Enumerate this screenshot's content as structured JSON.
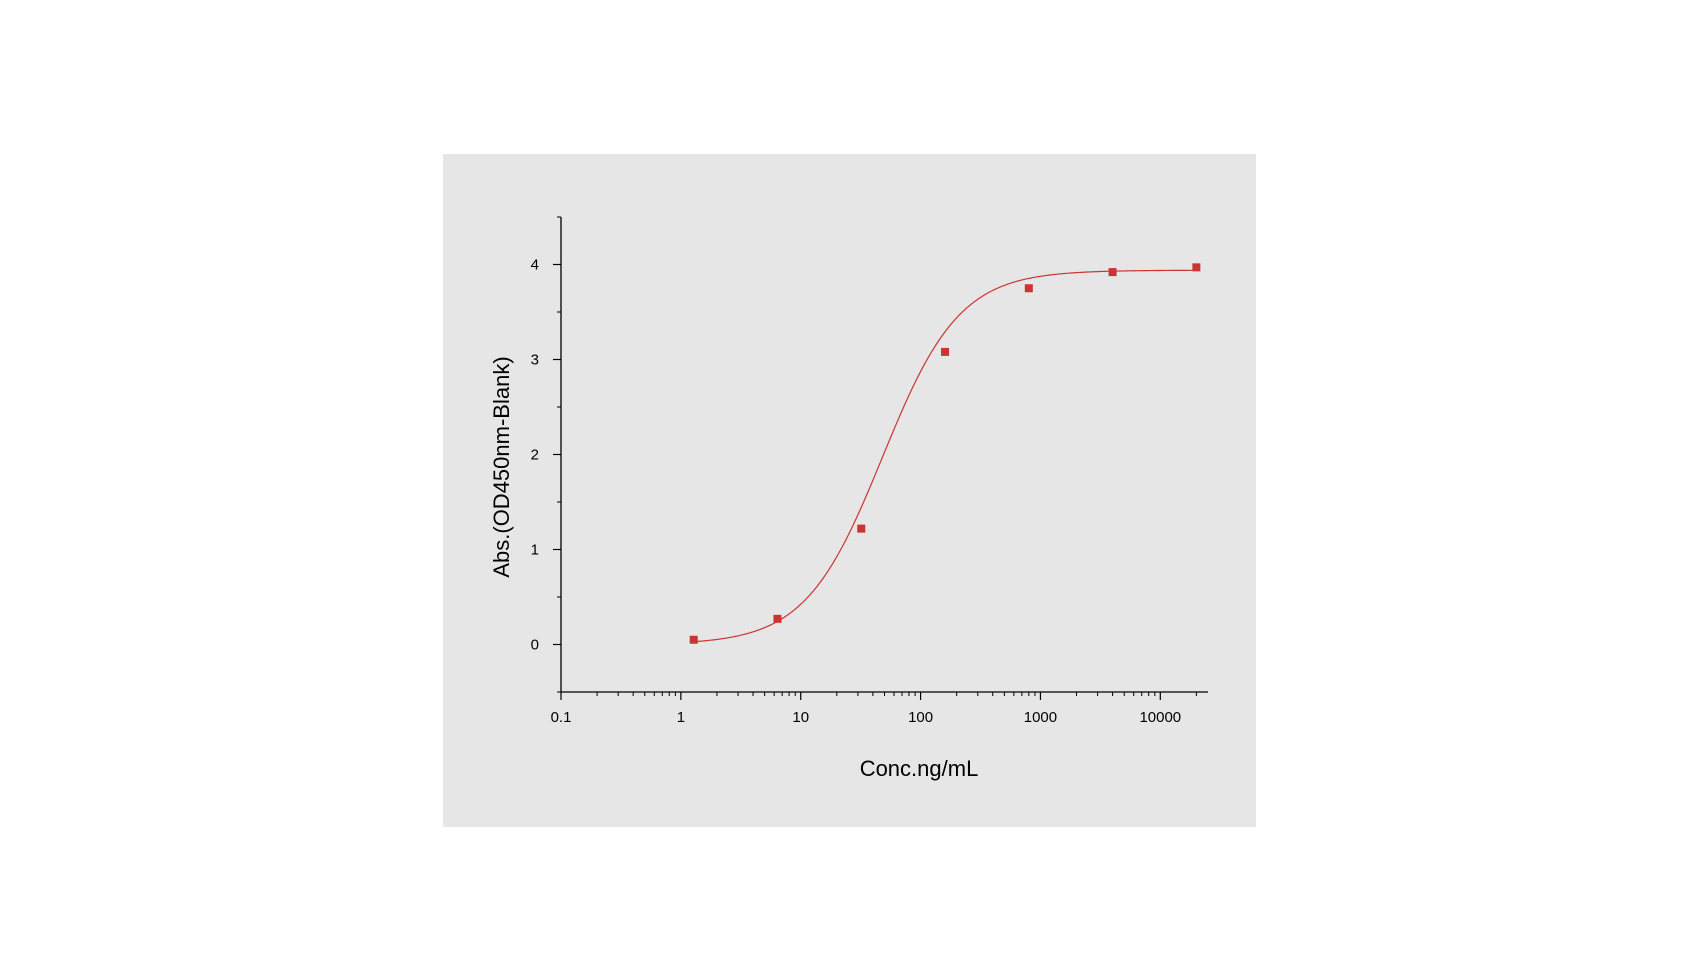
{
  "colors": {
    "page_background": "#ffffff",
    "plot_panel": "#e6e6e6",
    "axis": "#000000",
    "series": "#cc3333"
  },
  "chart_data": {
    "type": "scatter",
    "title": "",
    "xlabel": "Conc.ng/mL",
    "ylabel": "Abs.(OD450nm-Blank)",
    "x_scale": "log",
    "xlim": [
      0.1,
      25000
    ],
    "ylim": [
      -0.5,
      4.5
    ],
    "x_ticks": [
      0.1,
      1,
      10,
      100,
      1000,
      10000
    ],
    "x_tick_labels": [
      "0.1",
      "1",
      "10",
      "100",
      "1000",
      "10000"
    ],
    "y_ticks": [
      0,
      1,
      2,
      3,
      4
    ],
    "y_tick_labels": [
      "0",
      "1",
      "2",
      "3",
      "4"
    ],
    "grid": false,
    "legend": "none",
    "series": [
      {
        "marker": "square",
        "fit": "four-parameter logistic curve",
        "x": [
          1.28,
          6.4,
          32,
          160,
          800,
          4000,
          20000
        ],
        "y": [
          0.05,
          0.27,
          1.22,
          3.08,
          3.75,
          3.92,
          3.97
        ]
      }
    ]
  }
}
